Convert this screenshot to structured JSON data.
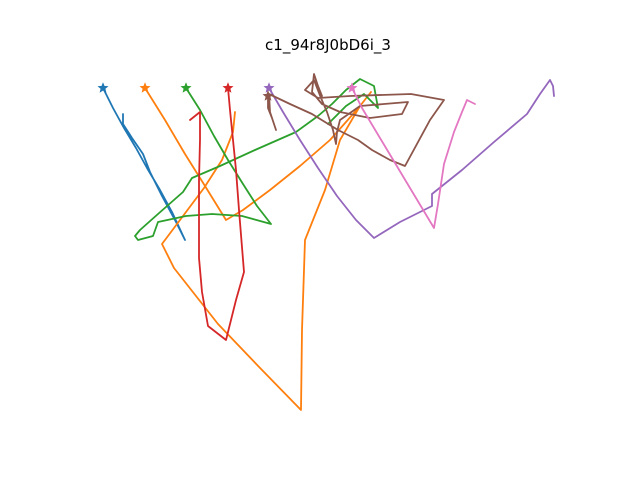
{
  "chart_data": {
    "type": "line",
    "title": "c1_94r8J0bD6i_3",
    "xlabel": "",
    "ylabel": "",
    "grid": false,
    "axes_visible": false,
    "start_marker": "star",
    "series": [
      {
        "color": "#1f77b4",
        "points": [
          [
            103,
            88
          ],
          [
            113,
            108
          ],
          [
            124,
            128
          ],
          [
            136,
            148
          ],
          [
            147,
            168
          ],
          [
            160,
            190
          ],
          [
            172,
            212
          ],
          [
            185,
            240
          ],
          [
            176,
            222
          ],
          [
            162,
            196
          ],
          [
            150,
            172
          ],
          [
            143,
            154
          ],
          [
            132,
            138
          ],
          [
            123,
            124
          ],
          [
            123,
            114
          ]
        ]
      },
      {
        "color": "#ff7f0e",
        "points": [
          [
            145,
            88
          ],
          [
            165,
            120
          ],
          [
            185,
            154
          ],
          [
            205,
            186
          ],
          [
            226,
            220
          ],
          [
            243,
            210
          ],
          [
            270,
            190
          ],
          [
            300,
            166
          ],
          [
            330,
            140
          ],
          [
            346,
            122
          ],
          [
            360,
            106
          ],
          [
            371,
            92
          ],
          [
            360,
            106
          ],
          [
            340,
            140
          ],
          [
            325,
            190
          ],
          [
            305,
            240
          ],
          [
            302,
            330
          ],
          [
            301,
            410
          ],
          [
            262,
            370
          ],
          [
            218,
            324
          ],
          [
            174,
            268
          ],
          [
            162,
            244
          ],
          [
            180,
            220
          ],
          [
            204,
            188
          ],
          [
            222,
            160
          ],
          [
            233,
            132
          ],
          [
            235,
            112
          ]
        ]
      },
      {
        "color": "#2ca02c",
        "points": [
          [
            186,
            88
          ],
          [
            200,
            110
          ],
          [
            214,
            136
          ],
          [
            228,
            160
          ],
          [
            243,
            184
          ],
          [
            257,
            206
          ],
          [
            271,
            224
          ],
          [
            242,
            216
          ],
          [
            212,
            214
          ],
          [
            186,
            216
          ],
          [
            158,
            222
          ],
          [
            153,
            236
          ],
          [
            138,
            240
          ],
          [
            135,
            236
          ],
          [
            140,
            230
          ],
          [
            158,
            214
          ],
          [
            183,
            192
          ],
          [
            192,
            178
          ],
          [
            220,
            166
          ],
          [
            255,
            150
          ],
          [
            296,
            132
          ],
          [
            318,
            116
          ],
          [
            332,
            104
          ],
          [
            346,
            90
          ],
          [
            360,
            79
          ],
          [
            374,
            86
          ],
          [
            378,
            108
          ],
          [
            364,
            94
          ],
          [
            346,
            106
          ],
          [
            328,
            124
          ]
        ]
      },
      {
        "color": "#d62728",
        "points": [
          [
            228,
            88
          ],
          [
            230,
            110
          ],
          [
            233,
            140
          ],
          [
            236,
            170
          ],
          [
            239,
            210
          ],
          [
            244,
            272
          ],
          [
            236,
            300
          ],
          [
            226,
            340
          ],
          [
            208,
            326
          ],
          [
            202,
            292
          ],
          [
            199,
            258
          ],
          [
            199,
            220
          ],
          [
            199,
            180
          ],
          [
            200,
            140
          ],
          [
            200,
            112
          ],
          [
            190,
            120
          ]
        ]
      },
      {
        "color": "#9467bd",
        "points": [
          [
            269,
            88
          ],
          [
            283,
            112
          ],
          [
            300,
            140
          ],
          [
            318,
            168
          ],
          [
            337,
            196
          ],
          [
            356,
            220
          ],
          [
            374,
            238
          ],
          [
            400,
            222
          ],
          [
            432,
            206
          ],
          [
            432,
            194
          ],
          [
            462,
            170
          ],
          [
            494,
            142
          ],
          [
            527,
            114
          ],
          [
            540,
            94
          ],
          [
            550,
            80
          ],
          [
            553,
            86
          ],
          [
            554,
            96
          ]
        ]
      },
      {
        "color": "#8c564b",
        "points": [
          [
            268,
            96
          ],
          [
            268,
            108
          ],
          [
            272,
            118
          ],
          [
            276,
            130
          ],
          [
            270,
            112
          ],
          [
            269,
            94
          ],
          [
            290,
            104
          ],
          [
            312,
            114
          ],
          [
            338,
            130
          ],
          [
            358,
            140
          ],
          [
            372,
            150
          ],
          [
            390,
            160
          ],
          [
            405,
            166
          ],
          [
            430,
            120
          ],
          [
            444,
            100
          ],
          [
            411,
            94
          ],
          [
            350,
            96
          ],
          [
            318,
            98
          ],
          [
            305,
            90
          ],
          [
            314,
            80
          ],
          [
            321,
            98
          ],
          [
            327,
            112
          ],
          [
            333,
            130
          ],
          [
            336,
            144
          ],
          [
            337,
            132
          ],
          [
            340,
            120
          ],
          [
            360,
            106
          ],
          [
            384,
            104
          ],
          [
            408,
            102
          ],
          [
            402,
            114
          ],
          [
            370,
            118
          ],
          [
            340,
            112
          ],
          [
            322,
            104
          ],
          [
            312,
            92
          ],
          [
            314,
            74
          ],
          [
            318,
            86
          ],
          [
            322,
            96
          ]
        ]
      },
      {
        "color": "#e377c2",
        "points": [
          [
            352,
            88
          ],
          [
            362,
            108
          ],
          [
            374,
            128
          ],
          [
            386,
            148
          ],
          [
            398,
            168
          ],
          [
            410,
            188
          ],
          [
            422,
            208
          ],
          [
            434,
            228
          ],
          [
            438,
            204
          ],
          [
            444,
            164
          ],
          [
            454,
            132
          ],
          [
            462,
            112
          ],
          [
            467,
            100
          ],
          [
            475,
            104
          ]
        ]
      }
    ]
  }
}
